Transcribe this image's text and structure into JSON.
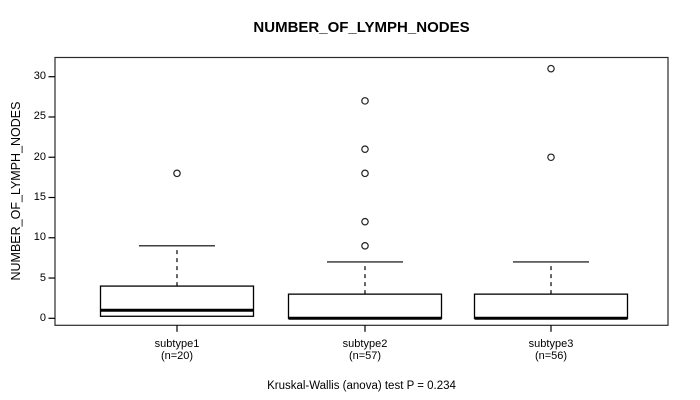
{
  "title": "NUMBER_OF_LYMPH_NODES",
  "caption": "Kruskal-Wallis (anova) test P = 0.234",
  "colors": {
    "foreground": "#000000",
    "background": "#ffffff",
    "box_stroke": "#000000",
    "box_fill": "#ffffff",
    "outlier_stroke": "#222222",
    "frame_stroke": "#2a2a2a"
  },
  "chart_data": {
    "type": "boxplot",
    "title": "NUMBER_OF_LYMPH_NODES",
    "ylabel": "NUMBER_OF_LYMPH_NODES",
    "xlabel": "",
    "caption": "Kruskal-Wallis (anova) test P = 0.234",
    "test": "Kruskal-Wallis (anova)",
    "p_value": 0.234,
    "ylim": [
      0,
      31
    ],
    "yticks": [
      0,
      5,
      10,
      15,
      20,
      25,
      30
    ],
    "grid": "off",
    "groups": [
      {
        "label": "subtype1",
        "sublabel": "(n=20)",
        "n": 20,
        "q1": 0.25,
        "median": 1,
        "q3": 4,
        "whisker_low": 0.25,
        "whisker_high": 9,
        "outliers": [
          18
        ]
      },
      {
        "label": "subtype2",
        "sublabel": "(n=57)",
        "n": 57,
        "q1": 0,
        "median": 0,
        "q3": 3,
        "whisker_low": 0,
        "whisker_high": 7,
        "outliers": [
          9,
          12,
          18,
          21,
          27
        ]
      },
      {
        "label": "subtype3",
        "sublabel": "(n=56)",
        "n": 56,
        "q1": 0,
        "median": 0,
        "q3": 3,
        "whisker_low": 0,
        "whisker_high": 7,
        "outliers": [
          20,
          31
        ]
      }
    ]
  }
}
